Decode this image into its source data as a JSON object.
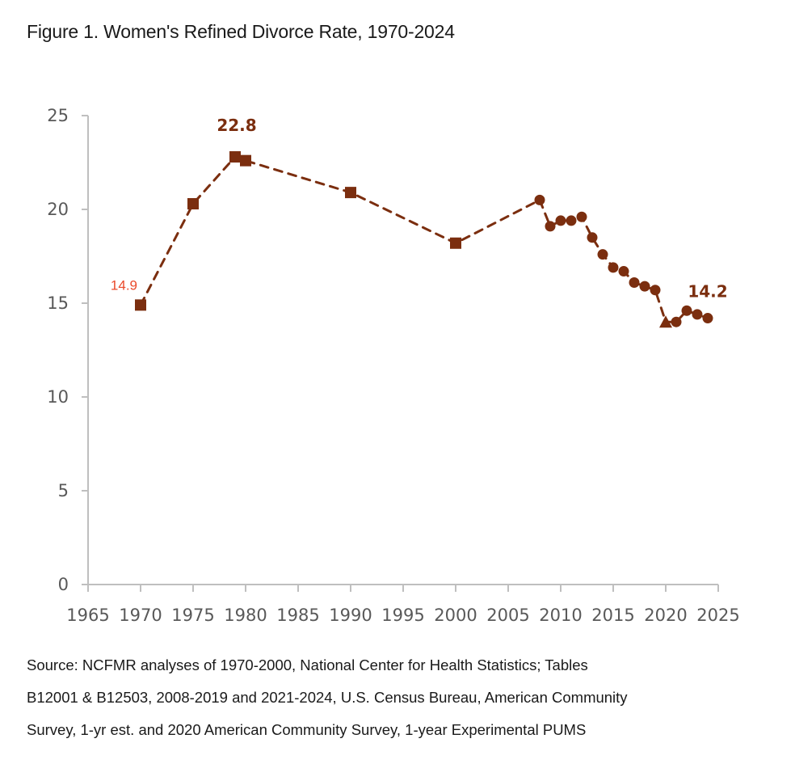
{
  "title": "Figure 1. Women's Refined Divorce Rate, 1970-2024",
  "source_lines": [
    "Source: NCFMR analyses of 1970-2000, National Center for Health Statistics; Tables",
    "B12001 & B12503, 2008-2019 and 2021-2024, U.S. Census Bureau, American Community",
    "Survey, 1-yr est. and 2020 American Community Survey, 1-year Experimental PUMS"
  ],
  "colors": {
    "series": "#7B2E0F",
    "annotation_start": "#EA4A2B",
    "axis": "#BFBFBF",
    "tick_label": "#595959"
  },
  "chart_data": {
    "type": "line",
    "title": "Figure 1. Women's Refined Divorce Rate, 1970-2024",
    "xlabel": "",
    "ylabel": "",
    "xlim": [
      1965,
      2025
    ],
    "ylim": [
      0,
      25
    ],
    "xticks": [
      1965,
      1970,
      1975,
      1980,
      1985,
      1990,
      1995,
      2000,
      2005,
      2010,
      2015,
      2020,
      2025
    ],
    "yticks": [
      0,
      5,
      10,
      15,
      20,
      25
    ],
    "grid": false,
    "legend": "none",
    "line_style": "dashed",
    "series": [
      {
        "name": "Women's Refined Divorce Rate",
        "points": [
          {
            "x": 1970,
            "y": 14.9,
            "marker": "square"
          },
          {
            "x": 1975,
            "y": 20.3,
            "marker": "square"
          },
          {
            "x": 1979,
            "y": 22.8,
            "marker": "square"
          },
          {
            "x": 1980,
            "y": 22.6,
            "marker": "square"
          },
          {
            "x": 1990,
            "y": 20.9,
            "marker": "square"
          },
          {
            "x": 2000,
            "y": 18.2,
            "marker": "square"
          },
          {
            "x": 2008,
            "y": 20.5,
            "marker": "circle"
          },
          {
            "x": 2009,
            "y": 19.1,
            "marker": "circle"
          },
          {
            "x": 2010,
            "y": 19.4,
            "marker": "circle"
          },
          {
            "x": 2011,
            "y": 19.4,
            "marker": "circle"
          },
          {
            "x": 2012,
            "y": 19.6,
            "marker": "circle"
          },
          {
            "x": 2013,
            "y": 18.5,
            "marker": "circle"
          },
          {
            "x": 2014,
            "y": 17.6,
            "marker": "circle"
          },
          {
            "x": 2015,
            "y": 16.9,
            "marker": "circle"
          },
          {
            "x": 2016,
            "y": 16.7,
            "marker": "circle"
          },
          {
            "x": 2017,
            "y": 16.1,
            "marker": "circle"
          },
          {
            "x": 2018,
            "y": 15.9,
            "marker": "circle"
          },
          {
            "x": 2019,
            "y": 15.7,
            "marker": "circle"
          },
          {
            "x": 2020,
            "y": 14.0,
            "marker": "triangle"
          },
          {
            "x": 2021,
            "y": 14.0,
            "marker": "circle"
          },
          {
            "x": 2022,
            "y": 14.6,
            "marker": "circle"
          },
          {
            "x": 2023,
            "y": 14.4,
            "marker": "circle"
          },
          {
            "x": 2024,
            "y": 14.2,
            "marker": "circle"
          }
        ]
      }
    ],
    "annotations": [
      {
        "text": "14.9",
        "x": 1970,
        "y": 14.9,
        "style": "small",
        "position": "upper-left"
      },
      {
        "text": "22.8",
        "x": 1979,
        "y": 22.8,
        "style": "bold",
        "position": "above"
      },
      {
        "text": "14.2",
        "x": 2024,
        "y": 14.2,
        "style": "bold",
        "position": "above"
      }
    ]
  }
}
